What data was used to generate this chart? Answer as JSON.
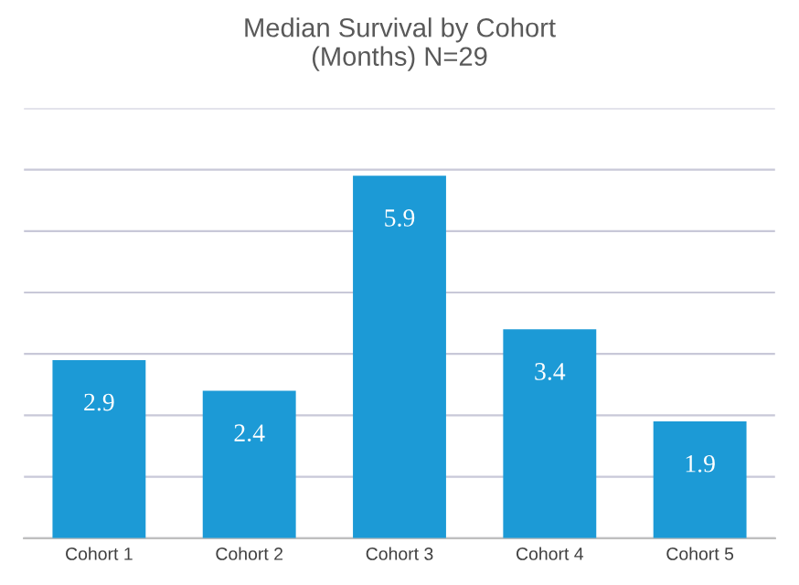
{
  "chart_data": {
    "type": "bar",
    "title": "Median Survival by Cohort\n(Months) N=29",
    "categories": [
      "Cohort 1",
      "Cohort 2",
      "Cohort 3",
      "Cohort 4",
      "Cohort 5"
    ],
    "values": [
      2.9,
      2.4,
      5.9,
      3.4,
      1.9
    ],
    "color": "#1c9ad6",
    "ylim": [
      0,
      7
    ],
    "yticks": [
      {
        "value": 0,
        "label": null
      },
      {
        "value": 1,
        "label": null
      },
      {
        "value": 2,
        "label": null
      },
      {
        "value": 3,
        "label": null
      },
      {
        "value": 4,
        "label": null
      },
      {
        "value": 5,
        "label": null
      },
      {
        "value": 6,
        "label": null
      },
      {
        "value": 7,
        "label": null
      }
    ],
    "grid": "y",
    "tick_labels": "x",
    "data_labels": true
  }
}
